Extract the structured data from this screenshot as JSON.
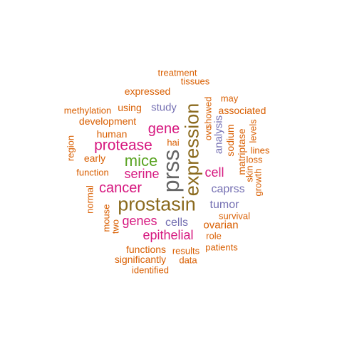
{
  "palette": {
    "dark_gray": "#666666",
    "brown": "#8b6a1e",
    "magenta": "#d6177f",
    "purple": "#7570b3",
    "green": "#5aa322",
    "orange": "#d95f02"
  },
  "words": [
    {
      "text": "prostasin",
      "color": "brown"
    },
    {
      "text": "prss",
      "color": "dark_gray"
    },
    {
      "text": "expression",
      "color": "brown"
    },
    {
      "text": "mice",
      "color": "green"
    },
    {
      "text": "protease",
      "color": "magenta"
    },
    {
      "text": "gene",
      "color": "magenta"
    },
    {
      "text": "cancer",
      "color": "magenta"
    },
    {
      "text": "serine",
      "color": "magenta"
    },
    {
      "text": "genes",
      "color": "magenta"
    },
    {
      "text": "epithelial",
      "color": "magenta"
    },
    {
      "text": "cell",
      "color": "magenta"
    },
    {
      "text": "tumor",
      "color": "purple"
    },
    {
      "text": "caprss",
      "color": "purple"
    },
    {
      "text": "cells",
      "color": "purple"
    },
    {
      "text": "study",
      "color": "purple"
    },
    {
      "text": "analysis",
      "color": "purple"
    },
    {
      "text": "ovarian",
      "color": "orange"
    },
    {
      "text": "treatment",
      "color": "orange"
    },
    {
      "text": "tissues",
      "color": "orange"
    },
    {
      "text": "expressed",
      "color": "orange"
    },
    {
      "text": "may",
      "color": "orange"
    },
    {
      "text": "methylation",
      "color": "orange"
    },
    {
      "text": "using",
      "color": "orange"
    },
    {
      "text": "associated",
      "color": "orange"
    },
    {
      "text": "development",
      "color": "orange"
    },
    {
      "text": "human",
      "color": "orange"
    },
    {
      "text": "showed",
      "color": "orange"
    },
    {
      "text": "ovc",
      "color": "orange"
    },
    {
      "text": "sodium",
      "color": "orange"
    },
    {
      "text": "matriptase",
      "color": "orange"
    },
    {
      "text": "levels",
      "color": "orange"
    },
    {
      "text": "lines",
      "color": "orange"
    },
    {
      "text": "loss",
      "color": "orange"
    },
    {
      "text": "skin",
      "color": "orange"
    },
    {
      "text": "growth",
      "color": "orange"
    },
    {
      "text": "hai",
      "color": "orange"
    },
    {
      "text": "region",
      "color": "orange"
    },
    {
      "text": "early",
      "color": "orange"
    },
    {
      "text": "function",
      "color": "orange"
    },
    {
      "text": "normal",
      "color": "orange"
    },
    {
      "text": "mouse",
      "color": "orange"
    },
    {
      "text": "two",
      "color": "orange"
    },
    {
      "text": "survival",
      "color": "orange"
    },
    {
      "text": "role",
      "color": "orange"
    },
    {
      "text": "patients",
      "color": "orange"
    },
    {
      "text": "functions",
      "color": "orange"
    },
    {
      "text": "results",
      "color": "orange"
    },
    {
      "text": "significantly",
      "color": "orange"
    },
    {
      "text": "data",
      "color": "orange"
    },
    {
      "text": "identified",
      "color": "orange"
    }
  ]
}
